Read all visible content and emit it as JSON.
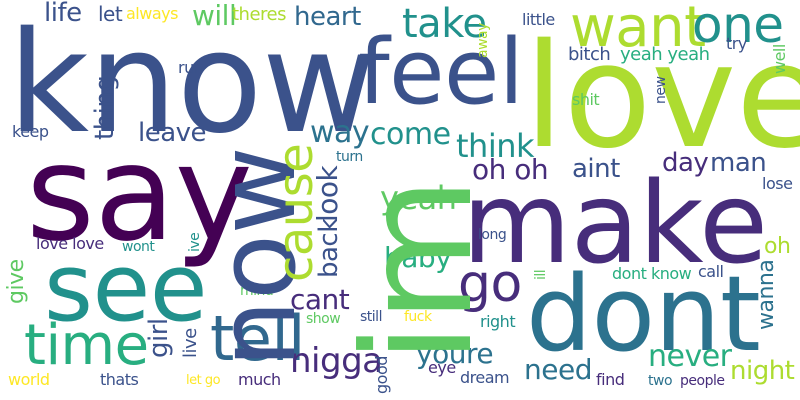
{
  "colors": {
    "c1": "#440154",
    "c2": "#3b528b",
    "c3": "#2c728e",
    "c4": "#21918c",
    "c5": "#28ae80",
    "c6": "#5ec962",
    "c7": "#addc30",
    "c8": "#fde725"
  },
  "words": [
    {
      "text": "know",
      "color": "#3b528b"
    },
    {
      "text": "love",
      "color": "#addc30"
    },
    {
      "text": "say",
      "color": "#440154"
    },
    {
      "text": "make",
      "color": "#472d7b"
    },
    {
      "text": "dont",
      "color": "#2c728e"
    },
    {
      "text": "feel",
      "color": "#3b528b"
    },
    {
      "text": "see",
      "color": "#21918c"
    },
    {
      "text": "im",
      "color": "#5ec962"
    },
    {
      "text": "now",
      "color": "#3b528b"
    },
    {
      "text": "want",
      "color": "#addc30"
    },
    {
      "text": "one",
      "color": "#21918c"
    },
    {
      "text": "tell",
      "color": "#31688e"
    },
    {
      "text": "time",
      "color": "#28ae80"
    },
    {
      "text": "cause",
      "color": "#addc30"
    },
    {
      "text": "go",
      "color": "#472d7b"
    },
    {
      "text": "take",
      "color": "#21918c"
    },
    {
      "text": "way",
      "color": "#2c728e"
    },
    {
      "text": "come",
      "color": "#21918c"
    },
    {
      "text": "think",
      "color": "#21918c"
    },
    {
      "text": "heart",
      "color": "#31688e"
    },
    {
      "text": "yeah",
      "color": "#5ec962"
    },
    {
      "text": "baby",
      "color": "#28ae80"
    },
    {
      "text": "niggа",
      "color": "#472d7b"
    },
    {
      "text": "youre",
      "color": "#2c728e"
    },
    {
      "text": "oh oh",
      "color": "#472d7b"
    },
    {
      "text": "aint",
      "color": "#3b528b"
    },
    {
      "text": "day",
      "color": "#472d7b"
    },
    {
      "text": "man",
      "color": "#3b528b"
    },
    {
      "text": "never",
      "color": "#28ae80"
    },
    {
      "text": "night",
      "color": "#addc30"
    },
    {
      "text": "need",
      "color": "#2c728e"
    },
    {
      "text": "look",
      "color": "#3b528b"
    },
    {
      "text": "back",
      "color": "#3b528b"
    },
    {
      "text": "cant",
      "color": "#472d7b"
    },
    {
      "text": "leave",
      "color": "#3b528b"
    },
    {
      "text": "thing",
      "color": "#3b528b"
    },
    {
      "text": "life",
      "color": "#3b528b"
    },
    {
      "text": "let",
      "color": "#3b528b"
    },
    {
      "text": "will",
      "color": "#5ec962"
    },
    {
      "text": "always",
      "color": "#fde725"
    },
    {
      "text": "theres",
      "color": "#addc30"
    },
    {
      "text": "run",
      "color": "#3b528b"
    },
    {
      "text": "keep",
      "color": "#3b528b"
    },
    {
      "text": "little",
      "color": "#3b528b"
    },
    {
      "text": "away",
      "color": "#addc30"
    },
    {
      "text": "bitch",
      "color": "#3b528b"
    },
    {
      "text": "yeah yeah",
      "color": "#28ae80"
    },
    {
      "text": "try",
      "color": "#3b528b"
    },
    {
      "text": "well",
      "color": "#5ec962"
    },
    {
      "text": "new",
      "color": "#3b528b"
    },
    {
      "text": "shit",
      "color": "#5ec962"
    },
    {
      "text": "turn",
      "color": "#2c728e"
    },
    {
      "text": "lose",
      "color": "#3b528b"
    },
    {
      "text": "love love",
      "color": "#472d7b"
    },
    {
      "text": "wont",
      "color": "#21918c"
    },
    {
      "text": "ive",
      "color": "#21918c"
    },
    {
      "text": "give",
      "color": "#5ec962"
    },
    {
      "text": "long",
      "color": "#3b528b"
    },
    {
      "text": "ill",
      "color": "#5ec962"
    },
    {
      "text": "dont know",
      "color": "#28ae80"
    },
    {
      "text": "call",
      "color": "#3b528b"
    },
    {
      "text": "oh",
      "color": "#addc30"
    },
    {
      "text": "wanna",
      "color": "#2c728e"
    },
    {
      "text": "mind",
      "color": "#5ec962"
    },
    {
      "text": "girl",
      "color": "#3b528b"
    },
    {
      "text": "live",
      "color": "#3b528b"
    },
    {
      "text": "show",
      "color": "#5ec962"
    },
    {
      "text": "still",
      "color": "#3b528b"
    },
    {
      "text": "fuck",
      "color": "#fde725"
    },
    {
      "text": "right",
      "color": "#21918c"
    },
    {
      "text": "world",
      "color": "#fde725"
    },
    {
      "text": "thats",
      "color": "#3b528b"
    },
    {
      "text": "let go",
      "color": "#fde725"
    },
    {
      "text": "much",
      "color": "#472d7b"
    },
    {
      "text": "good",
      "color": "#3b528b"
    },
    {
      "text": "eye",
      "color": "#472d7b"
    },
    {
      "text": "dream",
      "color": "#3b528b"
    },
    {
      "text": "find",
      "color": "#472d7b"
    },
    {
      "text": "two",
      "color": "#2c728e"
    },
    {
      "text": "people",
      "color": "#472d7b"
    }
  ]
}
